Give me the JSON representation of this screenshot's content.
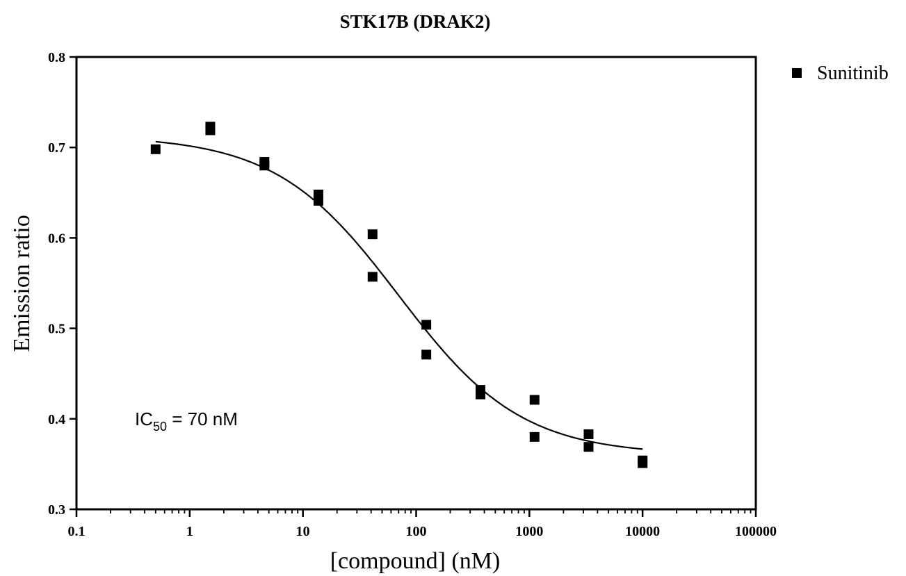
{
  "chart_data": {
    "type": "scatter",
    "title": "STK17B (DRAK2)",
    "xlabel": "[compound] (nM)",
    "ylabel": "Emission ratio",
    "xscale": "log",
    "xlim": [
      0.1,
      100000
    ],
    "ylim": [
      0.3,
      0.8
    ],
    "x_ticks": [
      0.1,
      1,
      10,
      100,
      1000,
      10000,
      100000
    ],
    "x_tick_labels": [
      "0.1",
      "1",
      "10",
      "100",
      "1000",
      "10000",
      "100000"
    ],
    "y_ticks": [
      0.3,
      0.4,
      0.5,
      0.6,
      0.7,
      0.8
    ],
    "y_tick_labels": [
      "0.3",
      "0.4",
      "0.5",
      "0.6",
      "0.7",
      "0.8"
    ],
    "grid": false,
    "legend": {
      "position": "top-right, outside plot",
      "entries": [
        "Sunitinib"
      ]
    },
    "series": [
      {
        "name": "Sunitinib",
        "marker": "square",
        "color": "#000000",
        "points": [
          {
            "x": 0.5,
            "y": 0.698
          },
          {
            "x": 1.52,
            "y": 0.719
          },
          {
            "x": 1.52,
            "y": 0.723
          },
          {
            "x": 4.57,
            "y": 0.68
          },
          {
            "x": 4.57,
            "y": 0.684
          },
          {
            "x": 13.7,
            "y": 0.641
          },
          {
            "x": 13.7,
            "y": 0.648
          },
          {
            "x": 41.2,
            "y": 0.557
          },
          {
            "x": 41.2,
            "y": 0.604
          },
          {
            "x": 123,
            "y": 0.471
          },
          {
            "x": 123,
            "y": 0.504
          },
          {
            "x": 370,
            "y": 0.427
          },
          {
            "x": 370,
            "y": 0.432
          },
          {
            "x": 1111,
            "y": 0.38
          },
          {
            "x": 1111,
            "y": 0.421
          },
          {
            "x": 3333,
            "y": 0.369
          },
          {
            "x": 3333,
            "y": 0.383
          },
          {
            "x": 10000,
            "y": 0.351
          },
          {
            "x": 10000,
            "y": 0.354
          }
        ],
        "fit": {
          "model": "sigmoidal dose-response",
          "top": 0.713,
          "bottom": 0.36,
          "ic50": 70,
          "hill_slope": -0.8,
          "x_range": [
            0.5,
            10000
          ]
        }
      }
    ],
    "annotations": [
      {
        "prefix": "IC",
        "subscript": "50",
        "suffix": " = 70  nM"
      }
    ]
  }
}
